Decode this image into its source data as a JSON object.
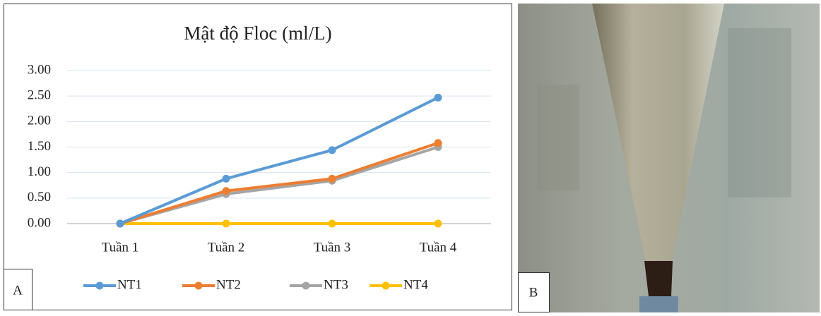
{
  "chart_data": {
    "type": "line",
    "title": "Mật độ Floc (ml/L)",
    "categories": [
      "Tuần 1",
      "Tuần 2",
      "Tuần 3",
      "Tuần 4"
    ],
    "series": [
      {
        "name": "NT1",
        "color": "#5b9bd5",
        "values": [
          0,
          0.88,
          1.44,
          2.47
        ]
      },
      {
        "name": "NT2",
        "color": "#ed7d31",
        "values": [
          0,
          0.64,
          0.88,
          1.58
        ]
      },
      {
        "name": "NT3",
        "color": "#a5a5a5",
        "values": [
          0,
          0.58,
          0.84,
          1.5
        ]
      },
      {
        "name": "NT4",
        "color": "#ffc000",
        "values": [
          0,
          0,
          0,
          0
        ]
      }
    ],
    "ylim": [
      0,
      3
    ],
    "yticks": [
      {
        "value": 0,
        "label": "0.00"
      },
      {
        "value": 0.5,
        "label": "0.50"
      },
      {
        "value": 1,
        "label": "1.00"
      },
      {
        "value": 1.5,
        "label": "1.50"
      },
      {
        "value": 2,
        "label": "2.00"
      },
      {
        "value": 2.5,
        "label": "2.50"
      },
      {
        "value": 3,
        "label": "3.00"
      }
    ],
    "grid": true,
    "legend": "bottom"
  },
  "panel_labels": [
    "A",
    "B"
  ]
}
